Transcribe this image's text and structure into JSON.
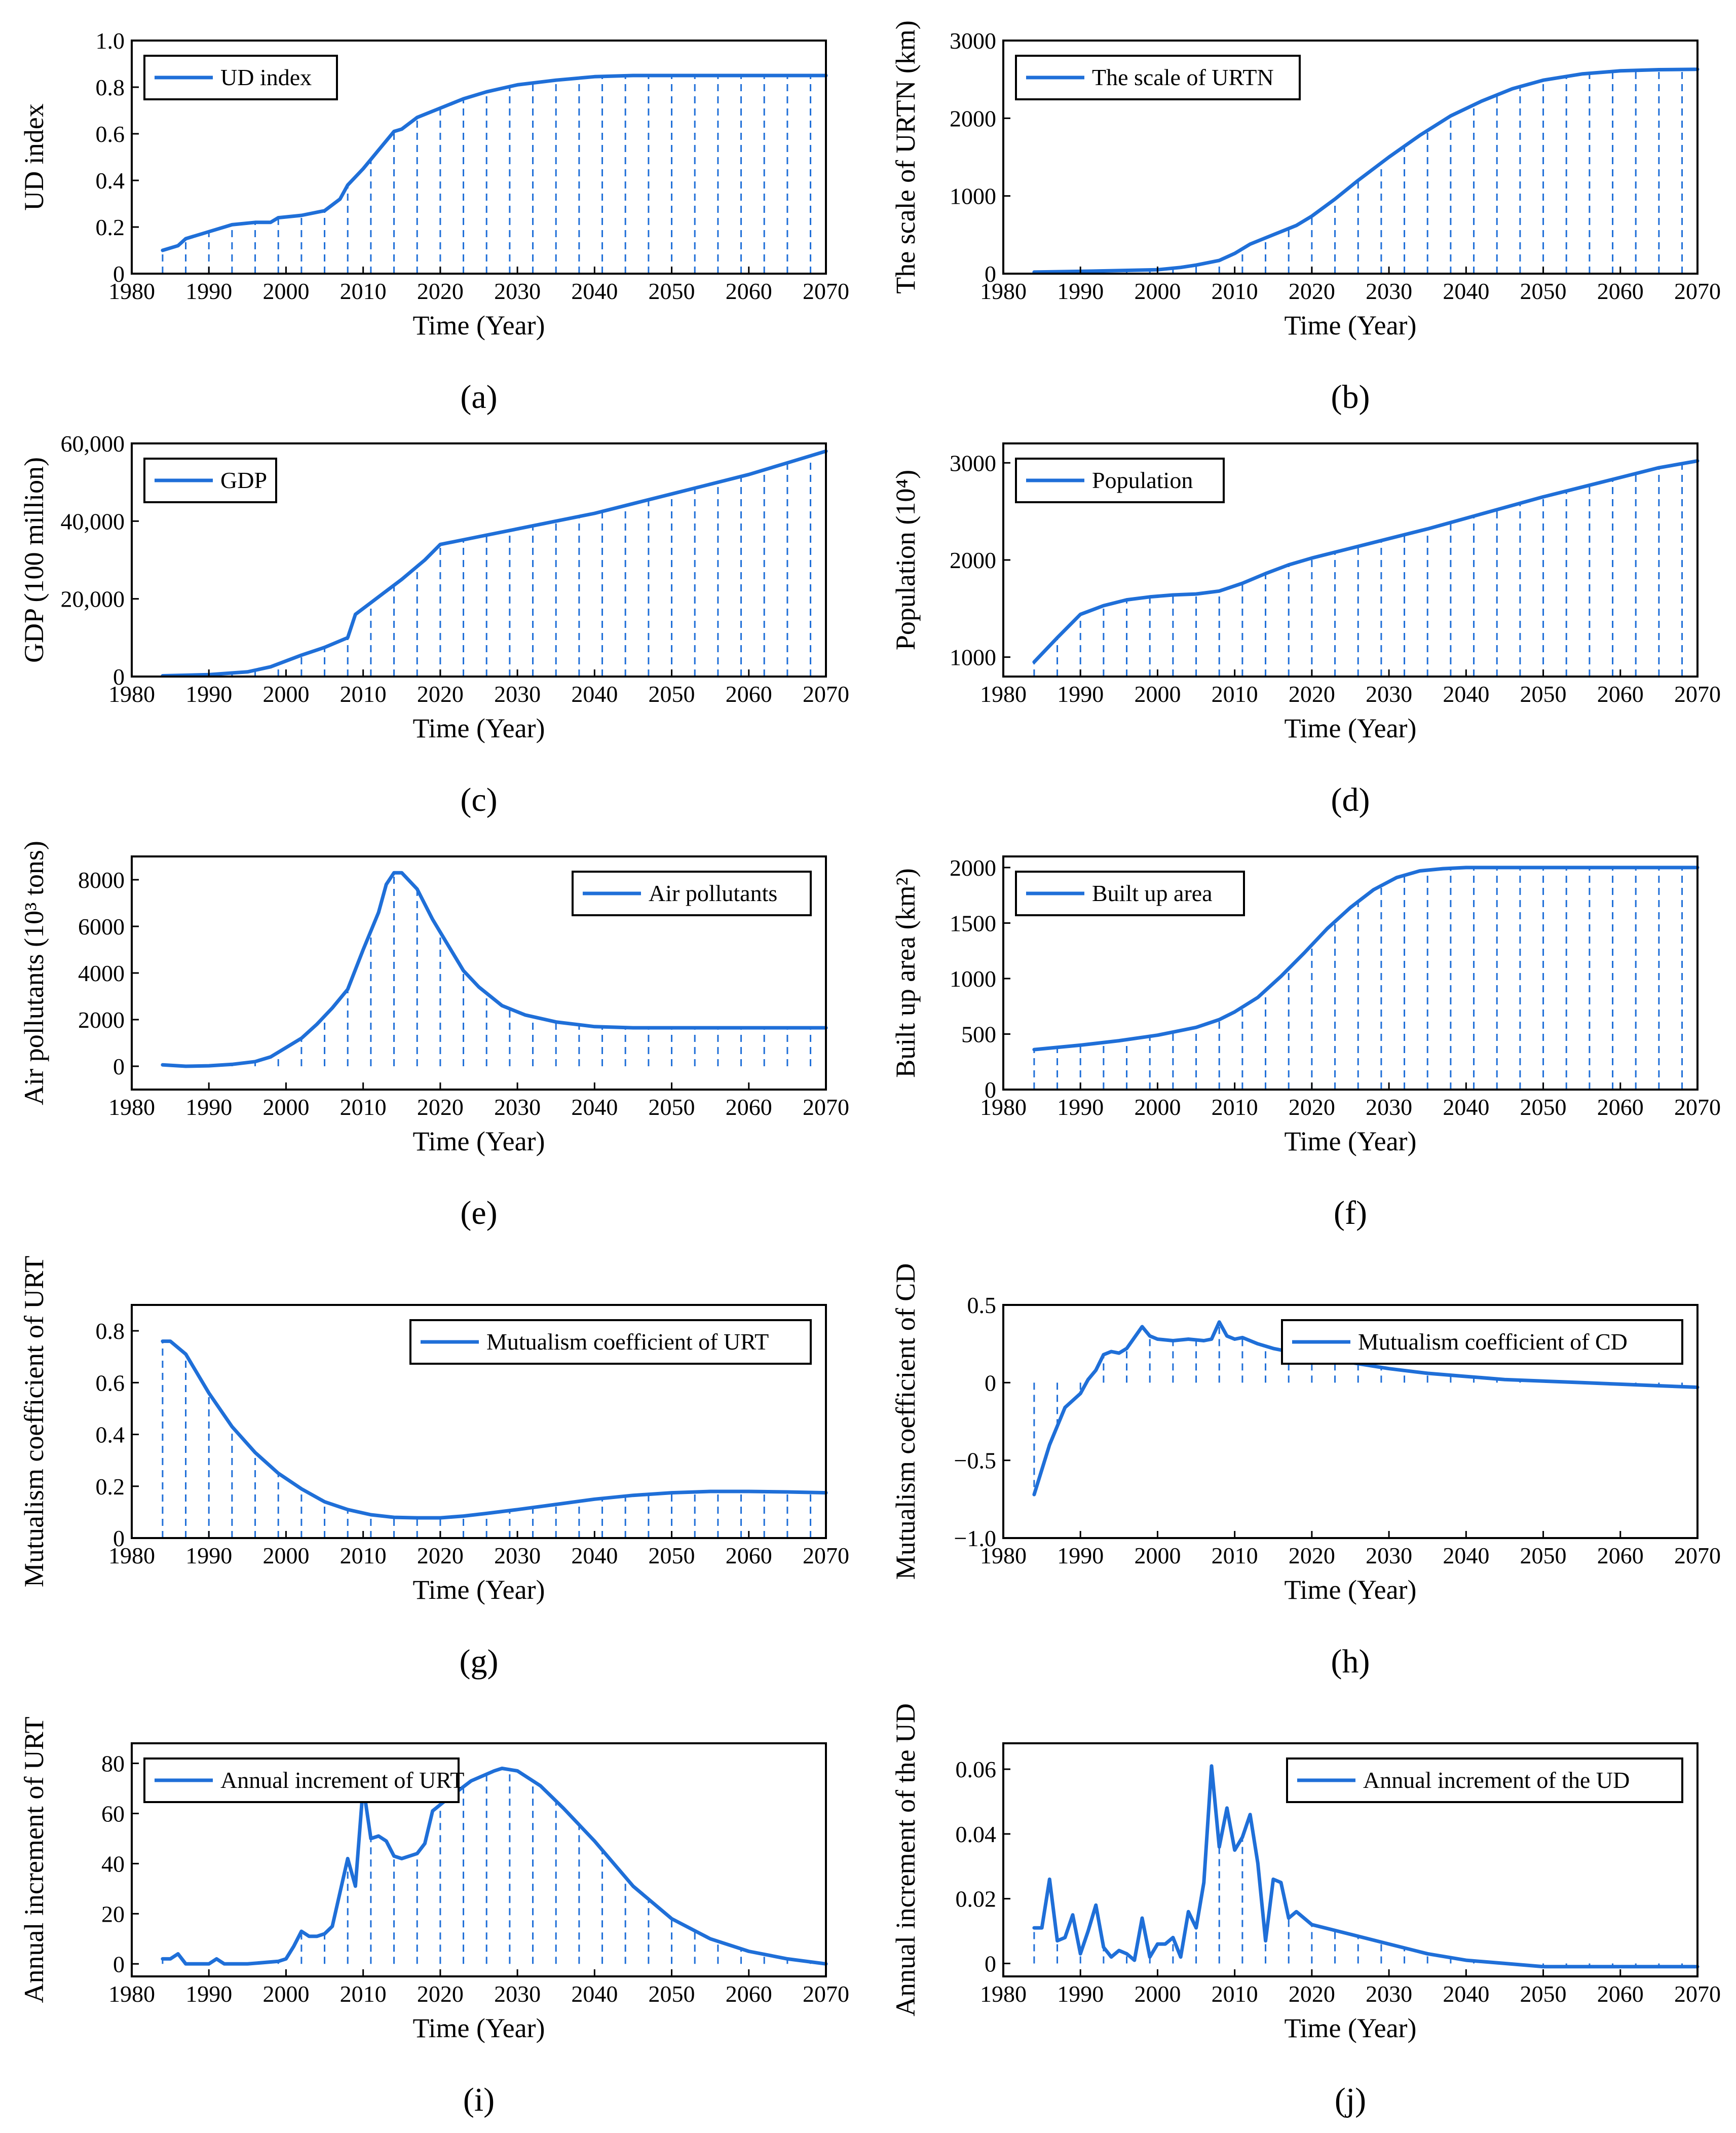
{
  "chart_data": [
    {
      "id": "a",
      "type": "line",
      "caption": "(a)",
      "xlabel": "Time (Year)",
      "ylabel": "UD index",
      "xlim": [
        1980,
        2070
      ],
      "ylim": [
        0,
        1.0
      ],
      "xticks": [
        1980,
        1990,
        2000,
        2010,
        2020,
        2030,
        2040,
        2050,
        2060,
        2070
      ],
      "xtick_labels": [
        "1980",
        "1990",
        "2000",
        "2010",
        "2020",
        "2030",
        "2040",
        "2050",
        "2060",
        "2070"
      ],
      "yticks": [
        0,
        0.2,
        0.4,
        0.6,
        0.8,
        1.0
      ],
      "ytick_labels": [
        "0",
        "0.2",
        "0.4",
        "0.6",
        "0.8",
        "1.0"
      ],
      "legend": "UD index",
      "legend_position": "top-left",
      "x": [
        1984,
        1986,
        1987,
        1989,
        1990,
        1992,
        1993,
        1996,
        1998,
        1999,
        2002,
        2005,
        2007,
        2008,
        2010,
        2012,
        2014,
        2015,
        2017,
        2020,
        2023,
        2026,
        2030,
        2035,
        2040,
        2045,
        2050,
        2055,
        2060,
        2065,
        2070
      ],
      "y": [
        0.1,
        0.12,
        0.15,
        0.17,
        0.18,
        0.2,
        0.21,
        0.22,
        0.22,
        0.24,
        0.25,
        0.27,
        0.32,
        0.38,
        0.45,
        0.53,
        0.61,
        0.62,
        0.67,
        0.71,
        0.75,
        0.78,
        0.81,
        0.83,
        0.845,
        0.85,
        0.85,
        0.85,
        0.85,
        0.85,
        0.85
      ]
    },
    {
      "id": "b",
      "type": "line",
      "caption": "(b)",
      "xlabel": "Time (Year)",
      "ylabel": "The scale of URTN (km)",
      "xlim": [
        1980,
        2070
      ],
      "ylim": [
        0,
        3000
      ],
      "xticks": [
        1980,
        1990,
        2000,
        2010,
        2020,
        2030,
        2040,
        2050,
        2060,
        2070
      ],
      "xtick_labels": [
        "1980",
        "1990",
        "2000",
        "2010",
        "2020",
        "2030",
        "2040",
        "2050",
        "2060",
        "2070"
      ],
      "yticks": [
        0,
        1000,
        2000,
        3000
      ],
      "ytick_labels": [
        "0",
        "1000",
        "2000",
        "3000"
      ],
      "legend": "The scale of URTN",
      "legend_position": "top-left",
      "x": [
        1984,
        1990,
        1995,
        2000,
        2003,
        2005,
        2008,
        2010,
        2012,
        2015,
        2018,
        2020,
        2023,
        2026,
        2030,
        2034,
        2038,
        2042,
        2046,
        2050,
        2055,
        2060,
        2065,
        2070
      ],
      "y": [
        20,
        30,
        40,
        50,
        80,
        110,
        170,
        260,
        380,
        500,
        620,
        740,
        960,
        1200,
        1500,
        1780,
        2030,
        2220,
        2380,
        2490,
        2570,
        2610,
        2625,
        2630
      ]
    },
    {
      "id": "c",
      "type": "line",
      "caption": "(c)",
      "xlabel": "Time (Year)",
      "ylabel": "GDP (100 million)",
      "xlim": [
        1980,
        2070
      ],
      "ylim": [
        0,
        60000
      ],
      "xticks": [
        1980,
        1990,
        2000,
        2010,
        2020,
        2030,
        2040,
        2050,
        2060,
        2070
      ],
      "xtick_labels": [
        "1980",
        "1990",
        "2000",
        "2010",
        "2020",
        "2030",
        "2040",
        "2050",
        "2060",
        "2070"
      ],
      "yticks": [
        0,
        20000,
        40000,
        60000
      ],
      "ytick_labels": [
        "0",
        "20,000",
        "40,000",
        "60,000"
      ],
      "legend": "GDP",
      "legend_position": "top-left",
      "x": [
        1984,
        1990,
        1995,
        1998,
        2000,
        2002,
        2005,
        2008,
        2009,
        2011,
        2013,
        2015,
        2018,
        2020,
        2025,
        2030,
        2035,
        2040,
        2045,
        2050,
        2055,
        2060,
        2065,
        2070
      ],
      "y": [
        200,
        500,
        1200,
        2500,
        4000,
        5500,
        7500,
        10000,
        16000,
        19000,
        22000,
        25000,
        30000,
        34000,
        36000,
        38000,
        40000,
        42000,
        44500,
        47000,
        49500,
        52000,
        55000,
        58000
      ]
    },
    {
      "id": "d",
      "type": "line",
      "caption": "(d)",
      "xlabel": "Time (Year)",
      "ylabel": "Population (10⁴)",
      "xlim": [
        1980,
        2070
      ],
      "ylim": [
        800,
        3200
      ],
      "xticks": [
        1980,
        1990,
        2000,
        2010,
        2020,
        2030,
        2040,
        2050,
        2060,
        2070
      ],
      "xtick_labels": [
        "1980",
        "1990",
        "2000",
        "2010",
        "2020",
        "2030",
        "2040",
        "2050",
        "2060",
        "2070"
      ],
      "yticks": [
        1000,
        2000,
        3000
      ],
      "ytick_labels": [
        "1000",
        "2000",
        "3000"
      ],
      "legend": "Population",
      "legend_position": "top-left",
      "x": [
        1984,
        1987,
        1990,
        1993,
        1996,
        1999,
        2002,
        2005,
        2008,
        2011,
        2014,
        2017,
        2020,
        2025,
        2030,
        2035,
        2040,
        2045,
        2050,
        2055,
        2060,
        2065,
        2070
      ],
      "y": [
        950,
        1200,
        1440,
        1530,
        1590,
        1620,
        1640,
        1650,
        1680,
        1760,
        1860,
        1950,
        2020,
        2120,
        2220,
        2320,
        2430,
        2540,
        2650,
        2750,
        2850,
        2950,
        3020
      ]
    },
    {
      "id": "e",
      "type": "line",
      "caption": "(e)",
      "xlabel": "Time (Year)",
      "ylabel": "Air pollutants (10³ tons)",
      "xlim": [
        1980,
        2070
      ],
      "ylim": [
        -1000,
        9000
      ],
      "xticks": [
        1980,
        1990,
        2000,
        2010,
        2020,
        2030,
        2040,
        2050,
        2060,
        2070
      ],
      "xtick_labels": [
        "1980",
        "1990",
        "2000",
        "2010",
        "2020",
        "2030",
        "2040",
        "2050",
        "2060",
        "2070"
      ],
      "yticks": [
        0,
        2000,
        4000,
        6000,
        8000
      ],
      "ytick_labels": [
        "0",
        "2000",
        "4000",
        "6000",
        "8000"
      ],
      "legend": "Air pollutants",
      "legend_position": "top-right",
      "x": [
        1984,
        1987,
        1990,
        1993,
        1996,
        1998,
        2000,
        2002,
        2004,
        2006,
        2008,
        2010,
        2012,
        2013,
        2014,
        2015,
        2017,
        2019,
        2021,
        2023,
        2025,
        2028,
        2031,
        2035,
        2040,
        2045,
        2050,
        2055,
        2060,
        2065,
        2070
      ],
      "y": [
        60,
        0,
        20,
        80,
        200,
        400,
        800,
        1200,
        1800,
        2500,
        3300,
        5000,
        6600,
        7800,
        8300,
        8300,
        7600,
        6300,
        5200,
        4100,
        3400,
        2600,
        2200,
        1900,
        1700,
        1650,
        1650,
        1650,
        1650,
        1650,
        1650
      ]
    },
    {
      "id": "f",
      "type": "line",
      "caption": "(f)",
      "xlabel": "Time (Year)",
      "ylabel": "Built up area (km²)",
      "xlim": [
        1980,
        2070
      ],
      "ylim": [
        0,
        2100
      ],
      "xticks": [
        1980,
        1990,
        2000,
        2010,
        2020,
        2030,
        2040,
        2050,
        2060,
        2070
      ],
      "xtick_labels": [
        "1980",
        "1990",
        "2000",
        "2010",
        "2020",
        "2030",
        "2040",
        "2050",
        "2060",
        "2070"
      ],
      "yticks": [
        0,
        500,
        1000,
        1500,
        2000
      ],
      "ytick_labels": [
        "0",
        "500",
        "1000",
        "1500",
        "2000"
      ],
      "legend": "Built up area",
      "legend_position": "top-left",
      "x": [
        1984,
        1990,
        1995,
        2000,
        2005,
        2008,
        2010,
        2013,
        2016,
        2019,
        2022,
        2025,
        2028,
        2031,
        2034,
        2037,
        2040,
        2045,
        2050,
        2060,
        2070
      ],
      "y": [
        360,
        400,
        440,
        490,
        560,
        630,
        700,
        830,
        1020,
        1230,
        1450,
        1640,
        1800,
        1910,
        1970,
        1990,
        2000,
        2000,
        2000,
        2000,
        2000
      ]
    },
    {
      "id": "g",
      "type": "line",
      "caption": "(g)",
      "xlabel": "Time (Year)",
      "ylabel": "Mutualism coefficient of URT",
      "xlim": [
        1980,
        2070
      ],
      "ylim": [
        0,
        0.9
      ],
      "xticks": [
        1980,
        1990,
        2000,
        2010,
        2020,
        2030,
        2040,
        2050,
        2060,
        2070
      ],
      "xtick_labels": [
        "1980",
        "1990",
        "2000",
        "2010",
        "2020",
        "2030",
        "2040",
        "2050",
        "2060",
        "2070"
      ],
      "yticks": [
        0,
        0.2,
        0.4,
        0.6,
        0.8
      ],
      "ytick_labels": [
        "0",
        "0.2",
        "0.4",
        "0.6",
        "0.8"
      ],
      "legend": "Mutualism coefficient of URT",
      "legend_position": "top-right",
      "x": [
        1984,
        1985,
        1987,
        1990,
        1993,
        1996,
        1999,
        2002,
        2005,
        2008,
        2011,
        2014,
        2017,
        2020,
        2023,
        2026,
        2030,
        2035,
        2040,
        2045,
        2050,
        2055,
        2060,
        2065,
        2070
      ],
      "y": [
        0.76,
        0.76,
        0.71,
        0.56,
        0.43,
        0.33,
        0.25,
        0.19,
        0.14,
        0.11,
        0.09,
        0.08,
        0.078,
        0.078,
        0.085,
        0.095,
        0.11,
        0.13,
        0.15,
        0.165,
        0.175,
        0.18,
        0.18,
        0.178,
        0.175
      ]
    },
    {
      "id": "h",
      "type": "line",
      "caption": "(h)",
      "xlabel": "Time (Year)",
      "ylabel": "Mutualism coefficient of CD",
      "xlim": [
        1980,
        2070
      ],
      "ylim": [
        -1.0,
        0.5
      ],
      "xticks": [
        1980,
        1990,
        2000,
        2010,
        2020,
        2030,
        2040,
        2050,
        2060,
        2070
      ],
      "xtick_labels": [
        "1980",
        "1990",
        "2000",
        "2010",
        "2020",
        "2030",
        "2040",
        "2050",
        "2060",
        "2070"
      ],
      "yticks": [
        -1.0,
        -0.5,
        0,
        0.5
      ],
      "ytick_labels": [
        "−1.0",
        "−0.5",
        "0",
        "0.5"
      ],
      "legend": "Mutualism coefficient of CD",
      "legend_position": "top-right",
      "x": [
        1984,
        1986,
        1988,
        1990,
        1991,
        1992,
        1993,
        1994,
        1995,
        1996,
        1997,
        1998,
        1999,
        2000,
        2002,
        2004,
        2006,
        2007,
        2008,
        2009,
        2010,
        2011,
        2013,
        2015,
        2018,
        2020,
        2025,
        2030,
        2035,
        2040,
        2045,
        2050,
        2055,
        2060,
        2065,
        2070
      ],
      "y": [
        -0.72,
        -0.4,
        -0.16,
        -0.07,
        0.02,
        0.08,
        0.18,
        0.2,
        0.19,
        0.22,
        0.29,
        0.36,
        0.3,
        0.28,
        0.27,
        0.28,
        0.27,
        0.28,
        0.39,
        0.3,
        0.28,
        0.29,
        0.25,
        0.22,
        0.19,
        0.17,
        0.13,
        0.09,
        0.06,
        0.04,
        0.02,
        0.01,
        0.0,
        -0.01,
        -0.02,
        -0.03
      ]
    },
    {
      "id": "i",
      "type": "line",
      "caption": "(i)",
      "xlabel": "Time (Year)",
      "ylabel": "Annual increment of URT",
      "xlim": [
        1980,
        2070
      ],
      "ylim": [
        -5,
        88
      ],
      "xticks": [
        1980,
        1990,
        2000,
        2010,
        2020,
        2030,
        2040,
        2050,
        2060,
        2070
      ],
      "xtick_labels": [
        "1980",
        "1990",
        "2000",
        "2010",
        "2020",
        "2030",
        "2040",
        "2050",
        "2060",
        "2070"
      ],
      "yticks": [
        0,
        20,
        40,
        60,
        80
      ],
      "ytick_labels": [
        "0",
        "20",
        "40",
        "60",
        "80"
      ],
      "legend": "Annual increment of URT",
      "legend_position": "top-left",
      "x": [
        1984,
        1985,
        1986,
        1987,
        1989,
        1990,
        1991,
        1992,
        1995,
        1999,
        2000,
        2001,
        2002,
        2003,
        2004,
        2005,
        2006,
        2008,
        2009,
        2010,
        2011,
        2012,
        2013,
        2014,
        2015,
        2016,
        2017,
        2018,
        2019,
        2021,
        2024,
        2027,
        2028,
        2030,
        2033,
        2036,
        2040,
        2045,
        2050,
        2055,
        2060,
        2065,
        2070
      ],
      "y": [
        2,
        2,
        4,
        0,
        0,
        0,
        2,
        0,
        0,
        1,
        2,
        7,
        13,
        11,
        11,
        12,
        15,
        42,
        31,
        71,
        50,
        51,
        49,
        43,
        42,
        43,
        44,
        48,
        61,
        66,
        73,
        77,
        78,
        77,
        71,
        62,
        49,
        31,
        18,
        10,
        5,
        2,
        0
      ]
    },
    {
      "id": "j",
      "type": "line",
      "caption": "(j)",
      "xlabel": "Time (Year)",
      "ylabel": "Annual increment of the UD",
      "xlim": [
        1980,
        2070
      ],
      "ylim": [
        -0.004,
        0.068
      ],
      "xticks": [
        1980,
        1990,
        2000,
        2010,
        2020,
        2030,
        2040,
        2050,
        2060,
        2070
      ],
      "xtick_labels": [
        "1980",
        "1990",
        "2000",
        "2010",
        "2020",
        "2030",
        "2040",
        "2050",
        "2060",
        "2070"
      ],
      "yticks": [
        0,
        0.02,
        0.04,
        0.06
      ],
      "ytick_labels": [
        "0",
        "0.02",
        "0.04",
        "0.06"
      ],
      "legend": "Annual increment of the UD",
      "legend_position": "top-right",
      "x": [
        1984,
        1985,
        1986,
        1987,
        1988,
        1989,
        1990,
        1991,
        1992,
        1993,
        1994,
        1995,
        1996,
        1997,
        1998,
        1999,
        2000,
        2001,
        2002,
        2003,
        2004,
        2005,
        2006,
        2007,
        2008,
        2009,
        2010,
        2011,
        2012,
        2013,
        2014,
        2015,
        2016,
        2017,
        2018,
        2020,
        2025,
        2030,
        2035,
        2040,
        2045,
        2050,
        2055,
        2060,
        2065,
        2070
      ],
      "y": [
        0.011,
        0.011,
        0.026,
        0.007,
        0.008,
        0.015,
        0.003,
        0.01,
        0.018,
        0.005,
        0.002,
        0.004,
        0.003,
        0.001,
        0.014,
        0.002,
        0.006,
        0.006,
        0.008,
        0.002,
        0.016,
        0.011,
        0.025,
        0.061,
        0.036,
        0.048,
        0.035,
        0.039,
        0.046,
        0.031,
        0.007,
        0.026,
        0.025,
        0.014,
        0.016,
        0.012,
        0.009,
        0.006,
        0.003,
        0.001,
        0.0,
        -0.001,
        -0.001,
        -0.001,
        -0.001,
        -0.001
      ]
    }
  ]
}
